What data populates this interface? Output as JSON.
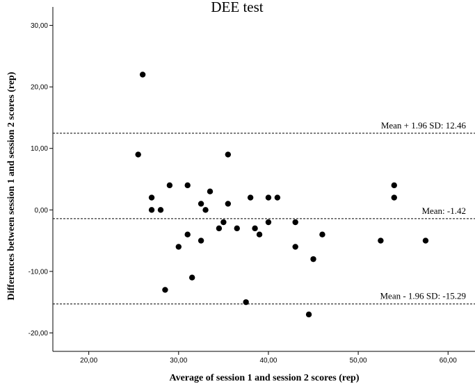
{
  "chart_data": {
    "type": "scatter",
    "title": "DEE test",
    "xlabel": "Average of session 1 and session 2 scores (rep)",
    "ylabel": "Differences between session 1 and session 2 scores (rep)",
    "xlim": [
      16,
      63
    ],
    "ylim": [
      -23,
      33
    ],
    "x_ticks": [
      20,
      30,
      40,
      50,
      60
    ],
    "x_tick_labels": [
      "20,00",
      "30,00",
      "40,00",
      "50,00",
      "60,00"
    ],
    "y_ticks": [
      -20,
      -10,
      0,
      10,
      20,
      30
    ],
    "y_tick_labels": [
      "-20,00",
      "-10,00",
      "0,00",
      "10,00",
      "20,00",
      "30,00"
    ],
    "grid": false,
    "reference_lines": [
      {
        "value": 12.46,
        "label": "Mean + 1.96 SD: 12.46"
      },
      {
        "value": -1.42,
        "label": "Mean: -1.42"
      },
      {
        "value": -15.29,
        "label": "Mean - 1.96 SD: -15.29"
      }
    ],
    "points": [
      {
        "x": 26,
        "y": 22
      },
      {
        "x": 25.5,
        "y": 9
      },
      {
        "x": 27,
        "y": 2
      },
      {
        "x": 27,
        "y": 0
      },
      {
        "x": 28,
        "y": 0
      },
      {
        "x": 28.5,
        "y": -13
      },
      {
        "x": 29,
        "y": 4
      },
      {
        "x": 30,
        "y": -6
      },
      {
        "x": 31,
        "y": 4
      },
      {
        "x": 31,
        "y": -4
      },
      {
        "x": 31.5,
        "y": -11
      },
      {
        "x": 32.5,
        "y": 1
      },
      {
        "x": 32.5,
        "y": -5
      },
      {
        "x": 33,
        "y": 0
      },
      {
        "x": 33.5,
        "y": 3
      },
      {
        "x": 34.5,
        "y": -3
      },
      {
        "x": 35,
        "y": -2
      },
      {
        "x": 35.5,
        "y": 9
      },
      {
        "x": 35.5,
        "y": 1
      },
      {
        "x": 36.5,
        "y": -3
      },
      {
        "x": 37.5,
        "y": -15
      },
      {
        "x": 38,
        "y": 2
      },
      {
        "x": 38.5,
        "y": -3
      },
      {
        "x": 39,
        "y": -4
      },
      {
        "x": 40,
        "y": 2
      },
      {
        "x": 40,
        "y": -2
      },
      {
        "x": 41,
        "y": 2
      },
      {
        "x": 43,
        "y": -2
      },
      {
        "x": 43,
        "y": -6
      },
      {
        "x": 44.5,
        "y": -17
      },
      {
        "x": 45,
        "y": -8
      },
      {
        "x": 46,
        "y": -4
      },
      {
        "x": 52.5,
        "y": -5
      },
      {
        "x": 54,
        "y": 4
      },
      {
        "x": 54,
        "y": 2
      },
      {
        "x": 57.5,
        "y": -5
      }
    ],
    "color": "#000000"
  }
}
